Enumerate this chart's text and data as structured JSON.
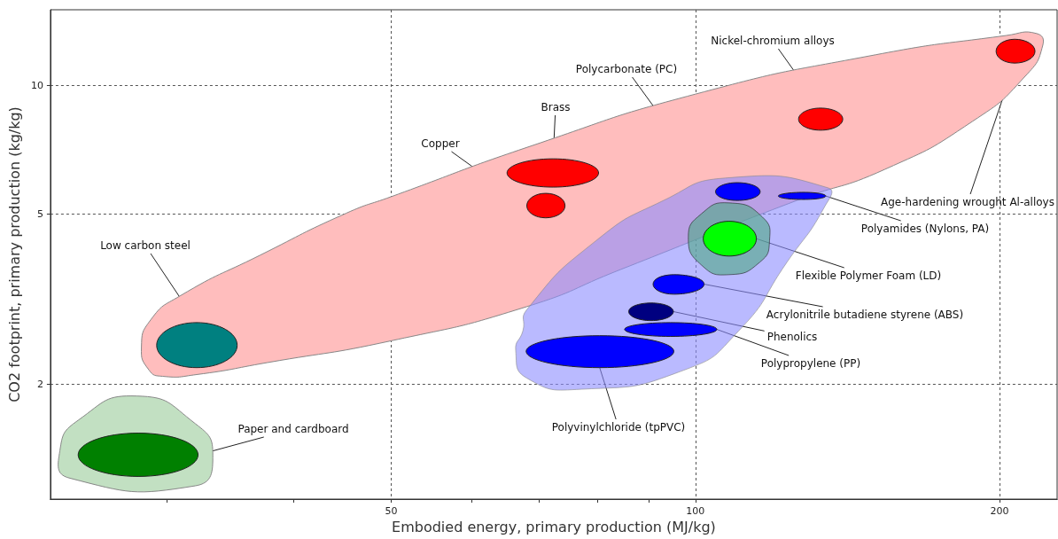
{
  "chart_data": {
    "type": "area",
    "xlabel": "Embodied energy, primary production (MJ/kg)",
    "ylabel": "CO2 footprint, primary production (kg/kg)",
    "log": "xy",
    "grid": true,
    "xlim": [
      23,
      228
    ],
    "ylim": [
      1.08,
      15
    ],
    "xticks": [
      {
        "value": 30,
        "label": null
      },
      {
        "value": 40,
        "label": null
      },
      50,
      {
        "value": 60,
        "label": null
      },
      {
        "value": 70,
        "label": null
      },
      {
        "value": 80,
        "label": null
      },
      {
        "value": 90,
        "label": null
      },
      100,
      200
    ],
    "yticks": [
      2,
      5,
      10
    ],
    "series": [
      {
        "color": "#ffbdbd",
        "x": [
          28.3,
          28.9,
          30.9,
          37.1,
          45.1,
          50,
          69,
          100,
          148.6,
          203,
          217.6,
          220.7,
          212,
          188,
          154,
          126,
          103,
          84.3,
          68.1,
          50,
          37.7,
          32.1,
          29.7,
          28.8
        ],
        "values": [
          2.44,
          2.83,
          3.22,
          4.01,
          5.02,
          5.49,
          7.23,
          9.53,
          11.7,
          13.06,
          13.2,
          12.4,
          10.49,
          8.23,
          6.36,
          5.38,
          null,
          3.71,
          3.04,
          2.53,
          2.25,
          2.11,
          2.09,
          2.16
        ]
      },
      {
        "color": "#8c8cff",
        "x": [
          107.1,
          135.2,
          134.1,
          123.2,
          110.4,
          97.4,
          77.2,
          68.1,
          66.4,
          67.5,
          68.1,
          79.7,
          93.0
        ],
        "values": [
          6.07,
          5.76,
          5.18,
          3.86,
          2.67,
          2.16,
          1.95,
          2.07,
          2.4,
          2.67,
          2.99,
          4.33,
          5.38
        ]
      },
      {
        "color": "#c2e0c2",
        "x": [
          28.0,
          32.0,
          33.3,
          32.0,
          30.5,
          25.7,
          24.0,
          23.5,
          24.5
        ],
        "values": [
          1.88,
          1.62,
          1.37,
          1.16,
          null,
          null,
          1.21,
          1.4,
          1.65
        ]
      },
      {
        "color": "#4fa884",
        "x": [
          108,
          116.5,
          118.4,
          115.8,
          108,
          101.4,
          98.4,
          101.4
        ],
        "values": [
          5.31,
          4.92,
          4.33,
          3.86,
          3.61,
          3.8,
          4.41,
          5.01
        ]
      },
      {
        "color": "#ff0000",
        "x": [
          68.1,
          71.1,
          74.3,
          71.1
        ],
        "values": [
          5.23,
          5.59,
          5.23,
          4.9
        ]
      },
      {
        "color": "#ff0000",
        "x": [
          65.1,
          72.3,
          80.2,
          72.3
        ],
        "values": [
          6.24,
          6.73,
          6.24,
          5.78
        ]
      },
      {
        "color": "#ff0000",
        "x": [
          126.5,
          133,
          139.9,
          133
        ],
        "values": [
          8.33,
          8.84,
          8.33,
          7.85
        ]
      },
      {
        "color": "#0000ff",
        "x": [
          104.7,
          110,
          115.9,
          110
        ],
        "values": [
          5.64,
          5.92,
          5.64,
          5.38
        ]
      },
      {
        "color": "#ff0000",
        "x": [
          198.4,
          207,
          216.8,
          207
        ],
        "values": [
          12.0,
          12.8,
          12.0,
          11.26
        ]
      },
      {
        "color": "#0000ff",
        "x": [
          120.8,
          128,
          134.6,
          128
        ],
        "values": [
          5.51,
          5.62,
          5.51,
          5.41
        ]
      },
      {
        "color": "#00ff00",
        "x": [
          101.8,
          108,
          114.9,
          108
        ],
        "values": [
          4.38,
          4.81,
          4.38,
          3.99
        ]
      },
      {
        "color": "#0000ff",
        "x": [
          90.8,
          95.2,
          102.0,
          95.2
        ],
        "values": [
          3.43,
          3.61,
          3.43,
          3.25
        ]
      },
      {
        "color": "#000080",
        "x": [
          85.9,
          90.4,
          95.1,
          90.4
        ],
        "values": [
          2.96,
          3.1,
          2.96,
          2.82
        ]
      },
      {
        "color": "#0000ff",
        "x": [
          85.1,
          94.5,
          105.0,
          94.5
        ],
        "values": [
          2.69,
          2.79,
          2.69,
          2.59
        ]
      },
      {
        "color": "#0000ff",
        "x": [
          68.0,
          80.4,
          95.2,
          80.4
        ],
        "values": [
          2.39,
          2.6,
          2.39,
          2.19
        ]
      },
      {
        "color": "#008080",
        "x": [
          29.3,
          32.1,
          35.2,
          32.1
        ],
        "values": [
          2.47,
          2.79,
          2.47,
          2.19
        ]
      },
      {
        "color": "#008000",
        "x": [
          24.5,
          28.1,
          32.2,
          28.1
        ],
        "values": [
          1.37,
          1.54,
          1.37,
          1.22
        ]
      }
    ],
    "annotations": [
      {
        "text": "Copper",
        "x": 68.1,
        "y": 5.23
      },
      {
        "text": "Brass",
        "x": 72.3,
        "y": 6.73
      },
      {
        "text": "Nickel-chromium alloys",
        "x": 133,
        "y": 8.84
      },
      {
        "text": "Polycarbonate (PC)",
        "x": 104.7,
        "y": 5.64
      },
      {
        "text": "Age-hardening wrought Al-alloys",
        "x": 207,
        "y": 11.26
      },
      {
        "text": "Polyamides (Nylons, PA)",
        "x": 134.6,
        "y": 5.51
      },
      {
        "text": "Flexible Polymer Foam (LD)",
        "x": 114.9,
        "y": 4.38
      },
      {
        "text": "Acrylonitrile butadiene styrene (ABS)",
        "x": 102.0,
        "y": 3.43
      },
      {
        "text": "Phenolics",
        "x": 95.1,
        "y": 2.96
      },
      {
        "text": "Polypropylene (PP)",
        "x": 105.0,
        "y": 2.69
      },
      {
        "text": "Polyvinylchloride (tpPVC)",
        "x": 80.4,
        "y": 2.19
      },
      {
        "text": "Low carbon steel",
        "x": 32.1,
        "y": 2.79
      },
      {
        "text": "Paper and cardboard",
        "x": 32.2,
        "y": 1.37
      }
    ]
  }
}
